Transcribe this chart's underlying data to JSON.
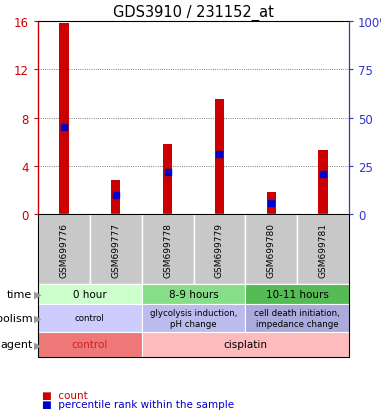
{
  "title": "GDS3910 / 231152_at",
  "samples": [
    "GSM699776",
    "GSM699777",
    "GSM699778",
    "GSM699779",
    "GSM699780",
    "GSM699781"
  ],
  "count_values": [
    15.8,
    2.8,
    5.8,
    9.5,
    1.8,
    5.3
  ],
  "percentile_values": [
    7.2,
    1.6,
    3.5,
    5.0,
    0.9,
    3.3
  ],
  "left_ylim": [
    0,
    16
  ],
  "left_yticks": [
    0,
    4,
    8,
    12,
    16
  ],
  "right_yticklabels": [
    "0",
    "25",
    "50",
    "75",
    "100%"
  ],
  "left_ycolor": "#cc0000",
  "right_ycolor": "#3333cc",
  "bar_color": "#cc0000",
  "dot_color": "#0000cc",
  "grid_color": "#555555",
  "bar_width": 0.18,
  "time_groups": [
    {
      "label": "0 hour",
      "cols": [
        0,
        1
      ],
      "color": "#ccffcc"
    },
    {
      "label": "8-9 hours",
      "cols": [
        2,
        3
      ],
      "color": "#88dd88"
    },
    {
      "label": "10-11 hours",
      "cols": [
        4,
        5
      ],
      "color": "#55bb55"
    }
  ],
  "metabolism_groups": [
    {
      "label": "control",
      "cols": [
        0,
        1
      ],
      "color": "#ccccff"
    },
    {
      "label": "glycolysis induction,\npH change",
      "cols": [
        2,
        3
      ],
      "color": "#bbbbee"
    },
    {
      "label": "cell death initiation,\nimpedance change",
      "cols": [
        4,
        5
      ],
      "color": "#aaaadd"
    }
  ],
  "agent_groups": [
    {
      "label": "control",
      "cols": [
        0,
        1
      ],
      "color": "#ee7777"
    },
    {
      "label": "cisplatin",
      "cols": [
        2,
        5
      ],
      "color": "#ffbbbb"
    }
  ],
  "row_labels": [
    "time",
    "metabolism",
    "agent"
  ],
  "sample_bg_color": "#c8c8c8",
  "plot_bg_color": "#ffffff",
  "arrow_color": "#888888",
  "spine_color": "#000000"
}
